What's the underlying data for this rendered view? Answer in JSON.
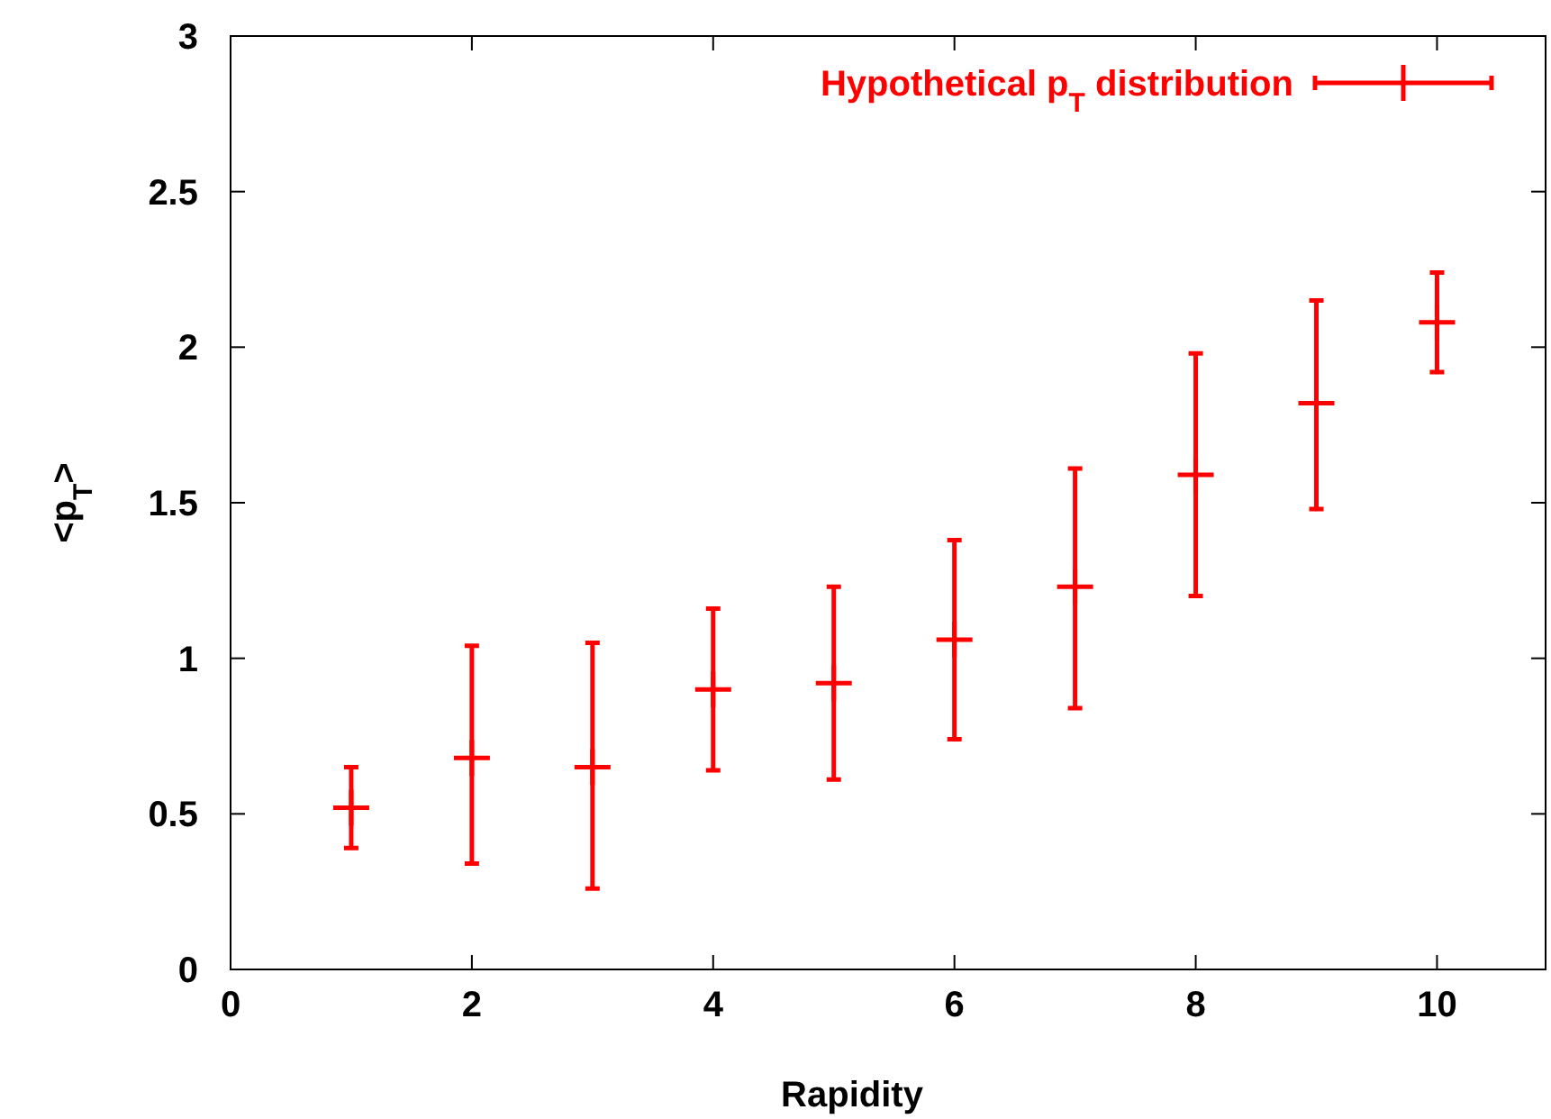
{
  "chart_data": {
    "type": "scatter",
    "xlabel": "Rapidity",
    "ylabel": "<p$_{T}$>",
    "x": [
      1,
      2,
      3,
      4,
      5,
      6,
      7,
      8,
      9,
      10
    ],
    "series": [
      {
        "name": "Hypothetical p$_{T}$ distribution",
        "color": "#ff0000",
        "values": [
          0.52,
          0.68,
          0.65,
          0.9,
          0.92,
          1.06,
          1.23,
          1.59,
          1.82,
          2.08
        ],
        "errors": [
          [
            0.39,
            0.65
          ],
          [
            0.34,
            1.04
          ],
          [
            0.26,
            1.05
          ],
          [
            0.64,
            1.16
          ],
          [
            0.61,
            1.23
          ],
          [
            0.74,
            1.38
          ],
          [
            0.84,
            1.61
          ],
          [
            1.2,
            1.98
          ],
          [
            1.48,
            2.15
          ],
          [
            1.92,
            2.24
          ]
        ]
      }
    ],
    "xlim": [
      0,
      10.9
    ],
    "ylim": [
      0,
      3
    ],
    "xticks": [
      0,
      2,
      4,
      6,
      8,
      10
    ],
    "yticks": [
      0,
      0.5,
      1,
      1.5,
      2,
      2.5,
      3
    ],
    "legend": "top right",
    "marker": "cross",
    "grid": false
  }
}
